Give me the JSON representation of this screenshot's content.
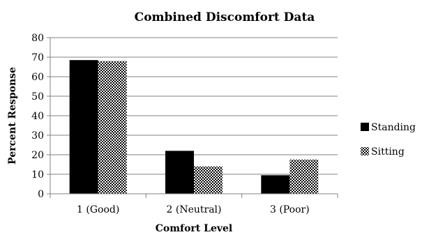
{
  "chart_data": {
    "type": "bar",
    "title": "Combined Discomfort Data",
    "xlabel": "Comfort Level",
    "ylabel": "Percent Response",
    "categories": [
      "1 (Good)",
      "2 (Neutral)",
      "3 (Poor)"
    ],
    "series": [
      {
        "name": "Standing",
        "values": [
          68.5,
          22,
          9.5
        ],
        "fill": "solid",
        "color": "#000000"
      },
      {
        "name": "Sitting",
        "values": [
          68,
          14,
          17.5
        ],
        "fill": "checkered",
        "color": "#000000"
      }
    ],
    "ylim": [
      0,
      80
    ],
    "ytick_step": 10,
    "grid": true,
    "legend_position": "right"
  }
}
